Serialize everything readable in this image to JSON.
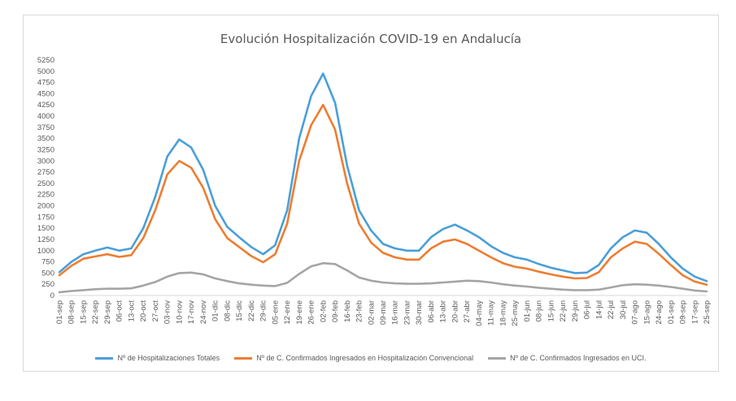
{
  "chart_data": {
    "type": "line",
    "title": "Evolución Hospitalización COVID-19 en Andalucía",
    "ylim": [
      0,
      5250
    ],
    "y_ticks": [
      0,
      250,
      500,
      750,
      1000,
      1250,
      1500,
      1750,
      2000,
      2250,
      2500,
      2750,
      3000,
      3250,
      3500,
      3750,
      4000,
      4250,
      4500,
      4750,
      5000,
      5250
    ],
    "categories": [
      "01-sep",
      "08-sep",
      "15-sep",
      "22-sep",
      "29-sep",
      "06-oct",
      "13-oct",
      "20-oct",
      "27-oct",
      "03-nov",
      "10-nov",
      "17-nov",
      "24-nov",
      "01-dic",
      "08-dic",
      "15-dic",
      "22-dic",
      "29-dic",
      "05-ene",
      "12-ene",
      "19-ene",
      "26-ene",
      "02-feb",
      "09-feb",
      "16-feb",
      "23-feb",
      "02-mar",
      "09-mar",
      "16-mar",
      "23-mar",
      "30-mar",
      "06-abr",
      "13-abr",
      "20-abr",
      "27-abr",
      "04-may",
      "11-may",
      "18-may",
      "25-may",
      "01-jun",
      "08-jun",
      "15-jun",
      "22-jun",
      "29-jun",
      "06-jul",
      "14-jul",
      "22-jul",
      "30-jul",
      "07-ago",
      "15-ago",
      "24-ago",
      "01-sep",
      "09-sep",
      "17-sep",
      "25-sep"
    ],
    "legend_position": "bottom",
    "grid": false,
    "series": [
      {
        "name": "Nº de Hospitalizaciones Totales",
        "color": "#4a9fd8",
        "values": [
          520,
          750,
          920,
          1000,
          1070,
          1000,
          1050,
          1500,
          2200,
          3100,
          3480,
          3300,
          2800,
          2000,
          1530,
          1300,
          1080,
          920,
          1120,
          1900,
          3500,
          4450,
          4950,
          4300,
          2900,
          1900,
          1450,
          1150,
          1050,
          1000,
          1000,
          1300,
          1480,
          1580,
          1450,
          1300,
          1100,
          950,
          850,
          800,
          700,
          620,
          560,
          500,
          510,
          680,
          1050,
          1300,
          1450,
          1400,
          1150,
          850,
          600,
          420,
          320
        ]
      },
      {
        "name": "Nº de C. Confirmados Ingresados en Hospitalización Convencional",
        "color": "#ed7d31",
        "values": [
          450,
          660,
          820,
          870,
          920,
          860,
          900,
          1280,
          1900,
          2700,
          3000,
          2850,
          2400,
          1700,
          1280,
          1080,
          880,
          740,
          920,
          1600,
          3000,
          3800,
          4250,
          3700,
          2500,
          1600,
          1180,
          950,
          850,
          800,
          800,
          1050,
          1200,
          1250,
          1150,
          1000,
          850,
          720,
          640,
          600,
          530,
          470,
          420,
          380,
          390,
          520,
          850,
          1050,
          1200,
          1150,
          930,
          680,
          450,
          310,
          240
        ]
      },
      {
        "name": "Nº de C. Confirmados Ingresados en UCI.",
        "color": "#a5a5a5",
        "values": [
          70,
          100,
          120,
          140,
          150,
          150,
          160,
          220,
          300,
          420,
          500,
          510,
          470,
          380,
          320,
          270,
          240,
          220,
          210,
          280,
          480,
          650,
          720,
          700,
          560,
          400,
          330,
          290,
          270,
          260,
          260,
          270,
          290,
          310,
          330,
          320,
          290,
          250,
          220,
          200,
          170,
          150,
          130,
          120,
          120,
          130,
          180,
          230,
          250,
          240,
          220,
          190,
          150,
          110,
          90
        ]
      }
    ]
  }
}
